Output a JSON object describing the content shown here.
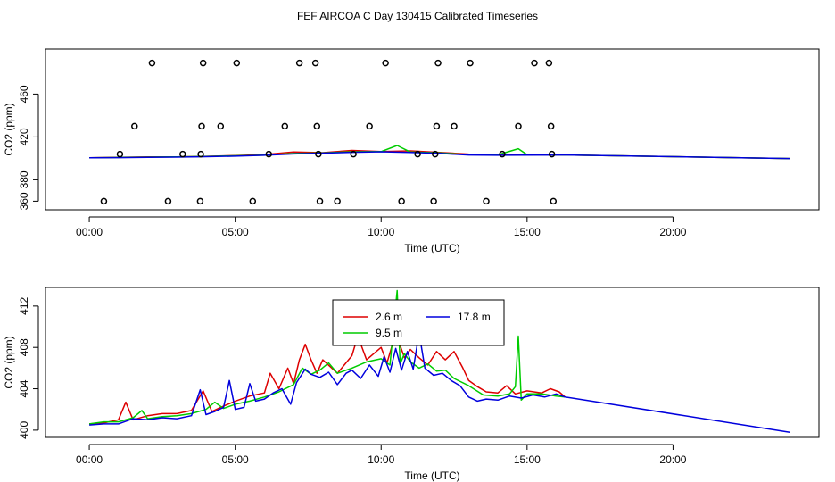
{
  "title": "FEF  AIRCOA C  Day 130415   Calibrated Timeseries",
  "colors": {
    "red": "#dd0000",
    "green": "#00cc00",
    "blue": "#0000dd",
    "axis": "#000000"
  },
  "chart_data": [
    {
      "type": "line+scatter",
      "xlabel": "Time (UTC)",
      "ylabel": "CO2 (ppm)",
      "xlim": [
        -1.5,
        25.0
      ],
      "ylim": [
        352,
        502
      ],
      "x_ticks": [
        0,
        5,
        10,
        15,
        20
      ],
      "x_tick_labels": [
        "00:00",
        "05:00",
        "10:00",
        "15:00",
        "20:00"
      ],
      "y_ticks": [
        360,
        380,
        420,
        460
      ],
      "y_tick_labels": [
        "360",
        "380",
        "420",
        "460"
      ],
      "scatter_circles": {
        "marker": "open-circle",
        "points": [
          [
            0.5,
            360
          ],
          [
            1.05,
            404
          ],
          [
            1.55,
            430
          ],
          [
            2.15,
            489
          ],
          [
            2.7,
            360
          ],
          [
            3.2,
            404
          ],
          [
            3.8,
            360
          ],
          [
            3.82,
            404
          ],
          [
            3.85,
            430
          ],
          [
            3.9,
            489
          ],
          [
            4.5,
            430
          ],
          [
            5.05,
            489
          ],
          [
            5.6,
            360
          ],
          [
            6.15,
            404
          ],
          [
            6.7,
            430
          ],
          [
            7.2,
            489
          ],
          [
            7.75,
            489
          ],
          [
            7.8,
            430
          ],
          [
            7.85,
            404
          ],
          [
            7.9,
            360
          ],
          [
            8.5,
            360
          ],
          [
            9.05,
            404
          ],
          [
            9.6,
            430
          ],
          [
            10.15,
            489
          ],
          [
            10.7,
            360
          ],
          [
            11.25,
            404
          ],
          [
            11.8,
            360
          ],
          [
            11.85,
            404
          ],
          [
            11.9,
            430
          ],
          [
            11.95,
            489
          ],
          [
            12.5,
            430
          ],
          [
            13.05,
            489
          ],
          [
            13.6,
            360
          ],
          [
            14.15,
            404
          ],
          [
            14.7,
            430
          ],
          [
            15.25,
            489
          ],
          [
            15.75,
            489
          ],
          [
            15.82,
            430
          ],
          [
            15.85,
            404
          ],
          [
            15.9,
            360
          ]
        ]
      },
      "series": [
        {
          "name": "2.6 m",
          "color": "#dd0000",
          "x": [
            0,
            1,
            2,
            3,
            4,
            5,
            6,
            7,
            8,
            9,
            10,
            11,
            12,
            13,
            14,
            15,
            16.3,
            24
          ],
          "y": [
            400.6,
            401.0,
            401.3,
            401.4,
            401.9,
            402.6,
            403.6,
            406.0,
            405.3,
            407.4,
            406.4,
            407.0,
            405.6,
            404.0,
            403.6,
            403.5,
            403.2,
            399.8
          ]
        },
        {
          "name": "9.5 m",
          "color": "#00cc00",
          "x": [
            0,
            1,
            2,
            3,
            4,
            5,
            6,
            7,
            8,
            9,
            10,
            10.55,
            11,
            12,
            13,
            14,
            14.7,
            15,
            16.3,
            24
          ],
          "y": [
            400.6,
            400.8,
            401.2,
            401.3,
            401.8,
            402.4,
            403.1,
            404.6,
            405.1,
            406.2,
            406.3,
            412.0,
            405.9,
            405.1,
            403.5,
            403.3,
            409.0,
            403.5,
            403.2,
            399.8
          ]
        },
        {
          "name": "17.8 m",
          "color": "#0000dd",
          "x": [
            0,
            1,
            2,
            3,
            4,
            5,
            6,
            7,
            8,
            9,
            10,
            11,
            12,
            13,
            14,
            15,
            16.3,
            24
          ],
          "y": [
            400.5,
            400.7,
            401.0,
            401.2,
            401.6,
            402.1,
            402.9,
            404.2,
            404.9,
            405.7,
            406.2,
            405.6,
            404.7,
            403.2,
            402.9,
            403.1,
            403.2,
            399.8
          ]
        }
      ]
    },
    {
      "type": "line",
      "xlabel": "Time (UTC)",
      "ylabel": "CO2 (ppm)",
      "xlim": [
        -1.5,
        25.0
      ],
      "ylim": [
        399.3,
        413.8
      ],
      "x_ticks": [
        0,
        5,
        10,
        15,
        20
      ],
      "x_tick_labels": [
        "00:00",
        "05:00",
        "10:00",
        "15:00",
        "20:00"
      ],
      "y_ticks": [
        400,
        404,
        408,
        412
      ],
      "y_tick_labels": [
        "400",
        "404",
        "408",
        "412"
      ],
      "legend": {
        "position": "top-center",
        "entries": [
          "2.6 m",
          "9.5 m",
          "17.8 m"
        ]
      },
      "series": [
        {
          "name": "2.6 m",
          "color": "#dd0000",
          "x": [
            0,
            0.5,
            1.0,
            1.25,
            1.5,
            2.0,
            2.5,
            3.0,
            3.5,
            3.9,
            4.2,
            4.5,
            5.0,
            5.5,
            6.0,
            6.2,
            6.5,
            6.8,
            7.0,
            7.2,
            7.4,
            7.6,
            7.8,
            8.0,
            8.5,
            9.0,
            9.2,
            9.5,
            10.0,
            10.2,
            10.5,
            10.8,
            11.0,
            11.3,
            11.6,
            11.9,
            12.2,
            12.5,
            12.8,
            13.0,
            13.3,
            13.6,
            14.0,
            14.3,
            14.6,
            15.0,
            15.5,
            15.8,
            16.1,
            16.3
          ],
          "y": [
            400.6,
            400.7,
            401.0,
            402.7,
            401.0,
            401.4,
            401.6,
            401.6,
            401.9,
            403.8,
            401.8,
            402.2,
            402.8,
            403.3,
            403.6,
            405.5,
            404.0,
            406.0,
            404.5,
            406.8,
            408.3,
            406.8,
            405.5,
            406.8,
            405.5,
            407.2,
            409.1,
            406.8,
            408.0,
            406.5,
            409.4,
            407.0,
            407.8,
            407.0,
            406.3,
            407.6,
            406.8,
            407.6,
            406.0,
            404.8,
            404.2,
            403.7,
            403.6,
            404.3,
            403.5,
            403.8,
            403.6,
            404.0,
            403.7,
            403.2
          ]
        },
        {
          "name": "9.5 m",
          "color": "#00cc00",
          "x": [
            0,
            0.5,
            1.0,
            1.5,
            1.8,
            2.0,
            2.5,
            3.0,
            3.5,
            4.0,
            4.3,
            4.6,
            5.0,
            5.5,
            6.0,
            6.5,
            7.0,
            7.3,
            7.6,
            7.9,
            8.2,
            8.5,
            9.0,
            9.5,
            10.0,
            10.3,
            10.55,
            10.65,
            10.8,
            11.0,
            11.3,
            11.6,
            11.9,
            12.2,
            12.5,
            13.0,
            13.5,
            14.0,
            14.4,
            14.6,
            14.7,
            14.8,
            15.0,
            15.5,
            16.0,
            16.3
          ],
          "y": [
            400.6,
            400.8,
            400.8,
            401.2,
            401.9,
            401.1,
            401.3,
            401.4,
            401.6,
            402.0,
            402.7,
            402.1,
            402.5,
            402.8,
            403.2,
            403.7,
            404.4,
            406.0,
            405.4,
            405.8,
            406.5,
            405.5,
            406.0,
            406.6,
            406.9,
            406.3,
            413.5,
            406.4,
            407.4,
            406.6,
            406.0,
            406.4,
            405.7,
            405.8,
            405.0,
            404.3,
            403.4,
            403.3,
            403.5,
            404.2,
            409.1,
            402.9,
            403.5,
            403.5,
            403.3,
            403.2
          ]
        },
        {
          "name": "17.8 m",
          "color": "#0000dd",
          "x": [
            0,
            0.5,
            1.0,
            1.5,
            2.0,
            2.5,
            3.0,
            3.5,
            3.8,
            4.0,
            4.3,
            4.6,
            4.8,
            5.0,
            5.3,
            5.5,
            5.7,
            6.0,
            6.3,
            6.6,
            6.9,
            7.1,
            7.4,
            7.6,
            7.9,
            8.2,
            8.5,
            8.8,
            9.0,
            9.3,
            9.6,
            9.9,
            10.1,
            10.3,
            10.5,
            10.7,
            10.9,
            11.1,
            11.3,
            11.5,
            11.8,
            12.1,
            12.4,
            12.7,
            13.0,
            13.3,
            13.6,
            14.0,
            14.4,
            14.8,
            15.2,
            15.6,
            16.0,
            16.3,
            24.0
          ],
          "y": [
            400.5,
            400.6,
            400.6,
            401.1,
            401.0,
            401.2,
            401.1,
            401.4,
            403.9,
            401.5,
            401.8,
            402.2,
            404.8,
            402.0,
            402.2,
            404.5,
            402.8,
            403.0,
            403.6,
            404.0,
            402.5,
            404.6,
            405.9,
            405.4,
            405.1,
            405.6,
            404.4,
            405.5,
            405.8,
            405.0,
            406.3,
            405.2,
            407.1,
            405.6,
            407.9,
            405.8,
            407.6,
            405.9,
            409.4,
            406.0,
            405.3,
            405.5,
            404.8,
            404.3,
            403.2,
            402.8,
            403.0,
            402.9,
            403.3,
            403.1,
            403.4,
            403.2,
            403.5,
            403.2,
            399.8
          ]
        }
      ]
    }
  ]
}
